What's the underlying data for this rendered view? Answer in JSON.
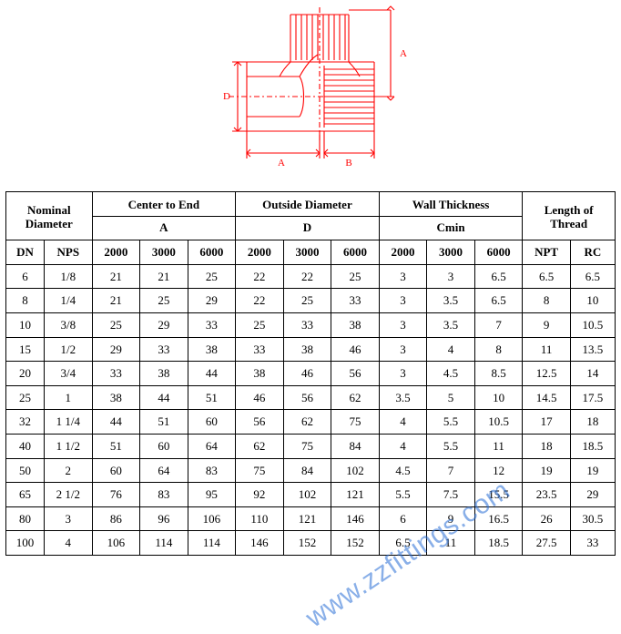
{
  "diagram": {
    "type": "technical-drawing",
    "label_A": "A",
    "label_B": "B",
    "label_D": "D",
    "label_Atop": "A",
    "stroke": "#ff0000",
    "stroke_width": 1.1,
    "fill": "none",
    "font_family": "Times New Roman",
    "font_size": 11
  },
  "watermark": {
    "text": "www.zzfittings.com"
  },
  "table": {
    "type": "table",
    "header_groups": [
      {
        "label": "Nominal Diameter",
        "span": 2,
        "sub": null,
        "cols": [
          "DN",
          "NPS"
        ]
      },
      {
        "label": "Center to End",
        "span": 3,
        "sub": "A",
        "cols": [
          "2000",
          "3000",
          "6000"
        ]
      },
      {
        "label": "Outside Diameter",
        "span": 3,
        "sub": "D",
        "cols": [
          "2000",
          "3000",
          "6000"
        ]
      },
      {
        "label": "Wall Thickness",
        "span": 3,
        "sub": "Cmin",
        "cols": [
          "2000",
          "3000",
          "6000"
        ]
      },
      {
        "label": "Length of Thread",
        "span": 2,
        "sub": null,
        "cols": [
          "NPT",
          "RC"
        ]
      }
    ],
    "rows": [
      [
        "6",
        "1/8",
        "21",
        "21",
        "25",
        "22",
        "22",
        "25",
        "3",
        "3",
        "6.5",
        "6.5",
        "6.5"
      ],
      [
        "8",
        "1/4",
        "21",
        "25",
        "29",
        "22",
        "25",
        "33",
        "3",
        "3.5",
        "6.5",
        "8",
        "10"
      ],
      [
        "10",
        "3/8",
        "25",
        "29",
        "33",
        "25",
        "33",
        "38",
        "3",
        "3.5",
        "7",
        "9",
        "10.5"
      ],
      [
        "15",
        "1/2",
        "29",
        "33",
        "38",
        "33",
        "38",
        "46",
        "3",
        "4",
        "8",
        "11",
        "13.5"
      ],
      [
        "20",
        "3/4",
        "33",
        "38",
        "44",
        "38",
        "46",
        "56",
        "3",
        "4.5",
        "8.5",
        "12.5",
        "14"
      ],
      [
        "25",
        "1",
        "38",
        "44",
        "51",
        "46",
        "56",
        "62",
        "3.5",
        "5",
        "10",
        "14.5",
        "17.5"
      ],
      [
        "32",
        "1 1/4",
        "44",
        "51",
        "60",
        "56",
        "62",
        "75",
        "4",
        "5.5",
        "10.5",
        "17",
        "18"
      ],
      [
        "40",
        "1 1/2",
        "51",
        "60",
        "64",
        "62",
        "75",
        "84",
        "4",
        "5.5",
        "11",
        "18",
        "18.5"
      ],
      [
        "50",
        "2",
        "60",
        "64",
        "83",
        "75",
        "84",
        "102",
        "4.5",
        "7",
        "12",
        "19",
        "19"
      ],
      [
        "65",
        "2 1/2",
        "76",
        "83",
        "95",
        "92",
        "102",
        "121",
        "5.5",
        "7.5",
        "15.5",
        "23.5",
        "29"
      ],
      [
        "80",
        "3",
        "86",
        "96",
        "106",
        "110",
        "121",
        "146",
        "6",
        "9",
        "16.5",
        "26",
        "30.5"
      ],
      [
        "100",
        "4",
        "106",
        "114",
        "114",
        "146",
        "152",
        "152",
        "6.5",
        "11",
        "18.5",
        "27.5",
        "33"
      ]
    ],
    "border_color": "#000000",
    "font_size": 13,
    "header_font_weight": "bold"
  }
}
